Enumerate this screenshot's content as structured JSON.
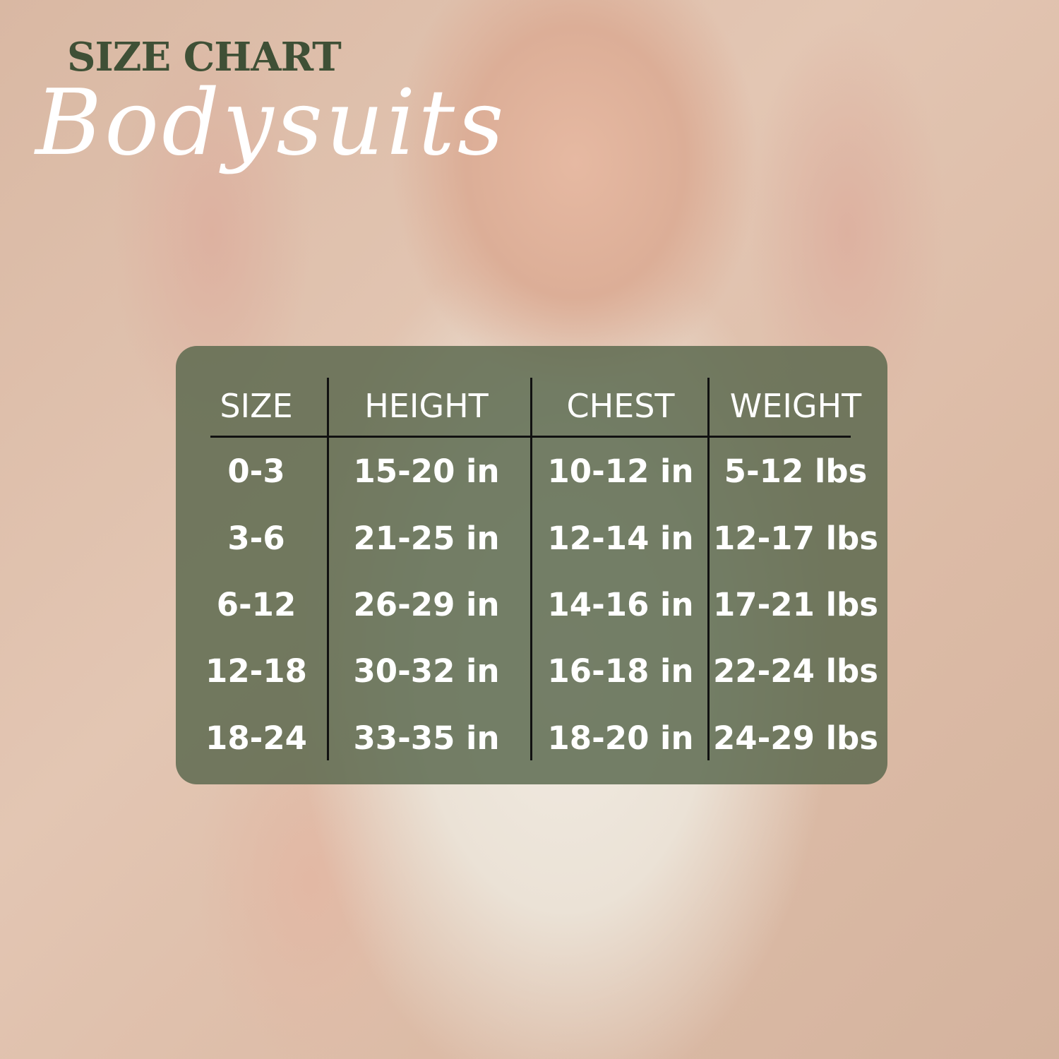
{
  "header": {
    "title": "SIZE CHART",
    "subtitle": "Bodysuits"
  },
  "colors": {
    "title": "#3f5036",
    "panel": "#58664c",
    "text": "#ffffff",
    "rules": "#111111"
  },
  "table": {
    "columns": [
      "SIZE",
      "HEIGHT",
      "CHEST",
      "WEIGHT"
    ],
    "rows": [
      [
        "0-3",
        "15-20 in",
        "10-12 in",
        "5-12 lbs"
      ],
      [
        "3-6",
        "21-25 in",
        "12-14 in",
        "12-17 lbs"
      ],
      [
        "6-12",
        "26-29 in",
        "14-16 in",
        "17-21 lbs"
      ],
      [
        "12-18",
        "30-32 in",
        "16-18 in",
        "22-24 lbs"
      ],
      [
        "18-24",
        "33-35 in",
        "18-20 in",
        "24-29 lbs"
      ]
    ]
  }
}
